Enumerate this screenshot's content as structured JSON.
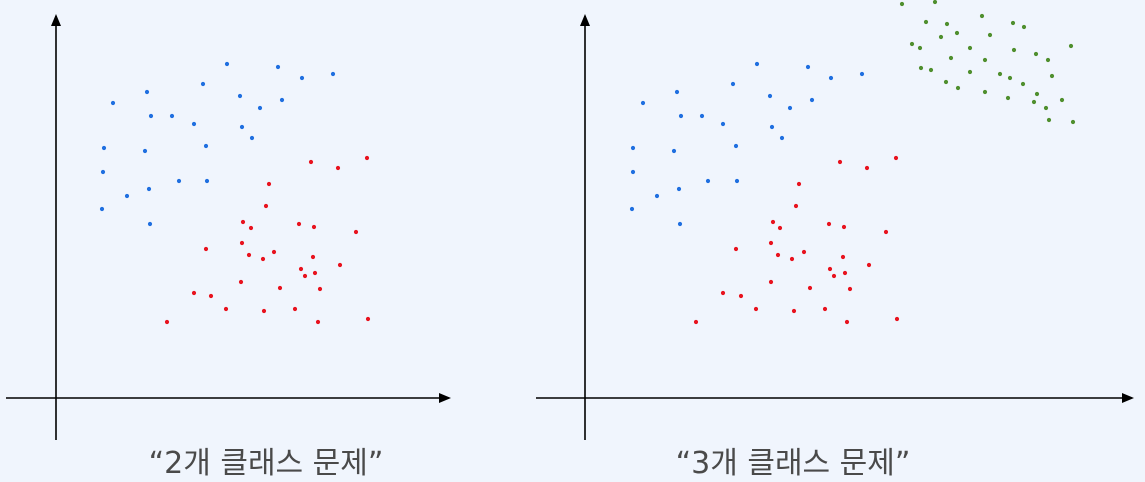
{
  "chart_data": [
    {
      "type": "scatter",
      "caption": "“2개 클래스 문제”",
      "axes": {
        "x_arrow": true,
        "y_arrow": true,
        "ticks": false,
        "grid": false
      },
      "series": [
        {
          "color": "#1f6fe0",
          "points": [
            [
              227,
              64
            ],
            [
              278,
              67
            ],
            [
              333,
              74
            ],
            [
              302,
              78
            ],
            [
              203,
              84
            ],
            [
              147,
              92
            ],
            [
              240,
              96
            ],
            [
              113,
              103
            ],
            [
              282,
              100
            ],
            [
              260,
              108
            ],
            [
              151,
              116
            ],
            [
              172,
              116
            ],
            [
              194,
              124
            ],
            [
              242,
              127
            ],
            [
              252,
              138
            ],
            [
              104,
              148
            ],
            [
              145,
              151
            ],
            [
              206,
              146
            ],
            [
              103,
              172
            ],
            [
              179,
              181
            ],
            [
              207,
              181
            ],
            [
              149,
              189
            ],
            [
              127,
              196
            ],
            [
              102,
              209
            ],
            [
              150,
              224
            ]
          ]
        },
        {
          "color": "#e8121e",
          "points": [
            [
              367,
              158
            ],
            [
              311,
              162
            ],
            [
              338,
              168
            ],
            [
              269,
              184
            ],
            [
              266,
              206
            ],
            [
              243,
              222
            ],
            [
              251,
              228
            ],
            [
              299,
              224
            ],
            [
              314,
              227
            ],
            [
              356,
              232
            ],
            [
              242,
              243
            ],
            [
              206,
              249
            ],
            [
              274,
              252
            ],
            [
              249,
              255
            ],
            [
              263,
              259
            ],
            [
              313,
              257
            ],
            [
              340,
              265
            ],
            [
              301,
              269
            ],
            [
              305,
              276
            ],
            [
              315,
              273
            ],
            [
              241,
              282
            ],
            [
              280,
              288
            ],
            [
              194,
              293
            ],
            [
              211,
              296
            ],
            [
              320,
              289
            ],
            [
              226,
              309
            ],
            [
              264,
              311
            ],
            [
              295,
              309
            ],
            [
              167,
              322
            ],
            [
              318,
              322
            ],
            [
              368,
              319
            ]
          ]
        }
      ]
    },
    {
      "type": "scatter",
      "caption": "“3개 클래스 문제”",
      "axes": {
        "x_arrow": true,
        "y_arrow": true,
        "ticks": false,
        "grid": false
      },
      "series": [
        {
          "color": "#1f6fe0",
          "points": [
            [
              757,
              64
            ],
            [
              808,
              67
            ],
            [
              862,
              74
            ],
            [
              831,
              78
            ],
            [
              733,
              84
            ],
            [
              677,
              92
            ],
            [
              770,
              96
            ],
            [
              643,
              103
            ],
            [
              812,
              100
            ],
            [
              790,
              108
            ],
            [
              681,
              116
            ],
            [
              702,
              116
            ],
            [
              723,
              124
            ],
            [
              772,
              127
            ],
            [
              782,
              138
            ],
            [
              633,
              148
            ],
            [
              674,
              151
            ],
            [
              736,
              146
            ],
            [
              633,
              172
            ],
            [
              708,
              181
            ],
            [
              737,
              181
            ],
            [
              679,
              189
            ],
            [
              657,
              196
            ],
            [
              632,
              209
            ],
            [
              680,
              224
            ]
          ]
        },
        {
          "color": "#e8121e",
          "points": [
            [
              896,
              158
            ],
            [
              840,
              162
            ],
            [
              867,
              168
            ],
            [
              799,
              184
            ],
            [
              796,
              206
            ],
            [
              773,
              222
            ],
            [
              780,
              228
            ],
            [
              829,
              224
            ],
            [
              844,
              227
            ],
            [
              886,
              232
            ],
            [
              771,
              243
            ],
            [
              736,
              249
            ],
            [
              804,
              252
            ],
            [
              778,
              255
            ],
            [
              792,
              259
            ],
            [
              843,
              257
            ],
            [
              869,
              265
            ],
            [
              830,
              269
            ],
            [
              834,
              276
            ],
            [
              845,
              273
            ],
            [
              771,
              282
            ],
            [
              810,
              288
            ],
            [
              723,
              293
            ],
            [
              741,
              296
            ],
            [
              850,
              289
            ],
            [
              756,
              309
            ],
            [
              794,
              311
            ],
            [
              825,
              309
            ],
            [
              696,
              322
            ],
            [
              847,
              322
            ],
            [
              897,
              319
            ]
          ]
        },
        {
          "color": "#4f8f2e",
          "points": [
            [
              902,
              4
            ],
            [
              935,
              2
            ],
            [
              982,
              16
            ],
            [
              926,
              22
            ],
            [
              947,
              24
            ],
            [
              1013,
              23
            ],
            [
              1024,
              27
            ],
            [
              957,
              33
            ],
            [
              941,
              37
            ],
            [
              990,
              35
            ],
            [
              912,
              44
            ],
            [
              920,
              48
            ],
            [
              970,
              48
            ],
            [
              1014,
              50
            ],
            [
              1036,
              54
            ],
            [
              1071,
              46
            ],
            [
              1048,
              60
            ],
            [
              951,
              58
            ],
            [
              985,
              60
            ],
            [
              931,
              70
            ],
            [
              921,
              68
            ],
            [
              970,
              72
            ],
            [
              1000,
              74
            ],
            [
              1010,
              78
            ],
            [
              1052,
              76
            ],
            [
              946,
              82
            ],
            [
              1023,
              84
            ],
            [
              1037,
              94
            ],
            [
              958,
              88
            ],
            [
              985,
              92
            ],
            [
              1008,
              98
            ],
            [
              1062,
              100
            ],
            [
              1034,
              102
            ],
            [
              1046,
              108
            ],
            [
              1049,
              120
            ],
            [
              1073,
              122
            ]
          ]
        }
      ]
    }
  ]
}
